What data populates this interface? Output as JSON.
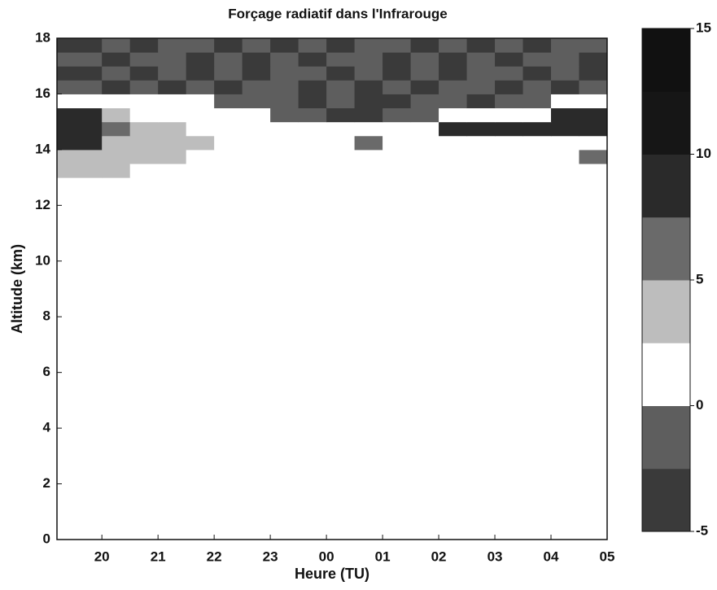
{
  "chart_data": {
    "type": "heatmap",
    "title": "Forçage radiatif dans l'Infrarouge",
    "xlabel": "Heure (TU)",
    "ylabel": "Altitude (km)",
    "xlim": [
      19.2,
      29
    ],
    "ylim": [
      0,
      18
    ],
    "xticks": [
      20,
      21,
      22,
      23,
      {
        "value": 24,
        "label": "00"
      },
      {
        "value": 25,
        "label": "01"
      },
      {
        "value": 26,
        "label": "02"
      },
      {
        "value": 27,
        "label": "03"
      },
      {
        "value": 28,
        "label": "04"
      },
      {
        "value": 29,
        "label": "05"
      }
    ],
    "yticks": [
      0,
      2,
      4,
      6,
      8,
      10,
      12,
      14,
      16,
      18
    ],
    "zlim": [
      -5,
      15
    ],
    "zticks": [
      -5,
      0,
      5,
      10,
      15
    ],
    "colors": [
      "#3a3a3a",
      "#5e5e5e",
      "#ffffff",
      "#bdbdbd",
      "#6a6a6a",
      "#2a2a2a",
      "#161616",
      "#111111"
    ],
    "x_bins": [
      19.2,
      20,
      20.5,
      21,
      21.5,
      22,
      22.5,
      23,
      23.5,
      24,
      24.5,
      25,
      25.5,
      26,
      26.5,
      27,
      27.5,
      28,
      28.5,
      29
    ],
    "y_bins": [
      0,
      13,
      13.5,
      14,
      14.5,
      15,
      15.5,
      16,
      16.5,
      17,
      17.5,
      18
    ],
    "z": [
      [
        0,
        0,
        0,
        0,
        0,
        0,
        0,
        0,
        0,
        0,
        0,
        0,
        0,
        0,
        0,
        0,
        0,
        0,
        0
      ],
      [
        3,
        3,
        0,
        0,
        0,
        0,
        0,
        0,
        0,
        0,
        0,
        0,
        0,
        0,
        0,
        0,
        0,
        0,
        0
      ],
      [
        4,
        4,
        3,
        3,
        0,
        0,
        0,
        0,
        0,
        0,
        0,
        0,
        0,
        0,
        0,
        0,
        0,
        0,
        6
      ],
      [
        8,
        4,
        3,
        4,
        3,
        0,
        0,
        0,
        0,
        0,
        6,
        0,
        0,
        0,
        0,
        0,
        0,
        0,
        0
      ],
      [
        9,
        6,
        4,
        3,
        0,
        0,
        0,
        0,
        0,
        0,
        0,
        0,
        0,
        9,
        9,
        8,
        8,
        9,
        9
      ],
      [
        8,
        3,
        0,
        0,
        0,
        0,
        0,
        -2,
        -2,
        -3,
        -3,
        -2,
        -2,
        0,
        0,
        0,
        0,
        8,
        9
      ],
      [
        0,
        0,
        0,
        0,
        0,
        -2,
        -2,
        -2,
        -3,
        -2,
        -3,
        -3,
        -2,
        -2,
        -3,
        -2,
        -2,
        0,
        0
      ],
      [
        -2,
        -3,
        -2,
        -3,
        -2,
        -3,
        -2,
        -2,
        -3,
        -2,
        -3,
        -2,
        -3,
        -2,
        -2,
        -3,
        -2,
        -3,
        -2
      ],
      [
        -3,
        -2,
        -3,
        -2,
        -3,
        -2,
        -3,
        -2,
        -2,
        -3,
        -2,
        -3,
        -2,
        -3,
        -2,
        -2,
        -3,
        -2,
        -3
      ],
      [
        -2,
        -3,
        -2,
        -2,
        -3,
        -2,
        -3,
        -2,
        -3,
        -2,
        -2,
        -3,
        -2,
        -3,
        -2,
        -3,
        -2,
        -2,
        -3
      ],
      [
        -3,
        -2,
        -3,
        -2,
        -2,
        -3,
        -2,
        -3,
        -2,
        -3,
        -2,
        -2,
        -3,
        -2,
        -3,
        -2,
        -3,
        -2,
        -2
      ]
    ]
  }
}
